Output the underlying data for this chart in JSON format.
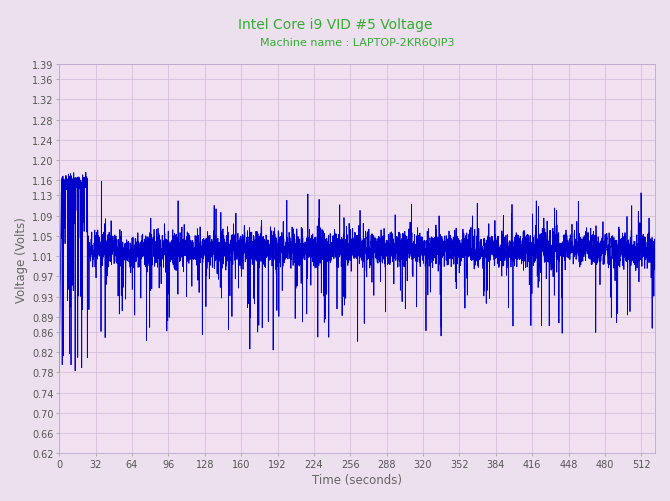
{
  "title": "Intel Core i9 VID #5 Voltage",
  "subtitle": "Machine name : LAPTOP-2KR6QIP3",
  "xlabel": "Time (seconds)",
  "ylabel": "Voltage (Volts)",
  "title_color": "#33aa33",
  "subtitle_color": "#33aa33",
  "line_color": "#0000cc",
  "bg_color": "#f0e0f0",
  "grid_color": "#d0b8d8",
  "fig_facecolor": "#ede0ee",
  "xlim": [
    0,
    524
  ],
  "ylim": [
    0.62,
    1.39
  ],
  "xticks": [
    0,
    32,
    64,
    96,
    128,
    160,
    192,
    224,
    256,
    288,
    320,
    352,
    384,
    416,
    448,
    480,
    512
  ],
  "yticks": [
    0.62,
    0.66,
    0.7,
    0.74,
    0.78,
    0.82,
    0.86,
    0.89,
    0.93,
    0.97,
    1.01,
    1.05,
    1.09,
    1.13,
    1.16,
    1.2,
    1.24,
    1.28,
    1.32,
    1.36,
    1.39
  ],
  "tick_fontsize": 7,
  "label_fontsize": 8.5,
  "title_fontsize": 10,
  "subtitle_fontsize": 8,
  "linewidth": 0.6,
  "seed": 12345,
  "total_seconds": 524,
  "samples_per_second": 8
}
